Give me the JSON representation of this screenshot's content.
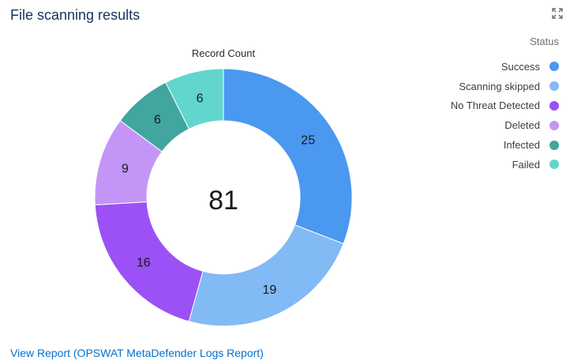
{
  "card": {
    "title": "File scanning results",
    "link_label": "View Report (OPSWAT MetaDefender Logs Report)"
  },
  "icons": {
    "expand": "expand-icon"
  },
  "chart_data": {
    "type": "pie",
    "donut": true,
    "title": "Record Count",
    "center_total": "81",
    "legend_title": "Status",
    "legend_position": "right",
    "slices": [
      {
        "label": "Success",
        "value": 25,
        "color": "#4a98f0"
      },
      {
        "label": "Scanning skipped",
        "value": 19,
        "color": "#82baf5"
      },
      {
        "label": "No Threat Detected",
        "value": 16,
        "color": "#9b51f5"
      },
      {
        "label": "Deleted",
        "value": 9,
        "color": "#c395f7"
      },
      {
        "label": "Infected",
        "value": 6,
        "color": "#41a69e"
      },
      {
        "label": "Failed",
        "value": 6,
        "color": "#62d6cd"
      }
    ]
  }
}
